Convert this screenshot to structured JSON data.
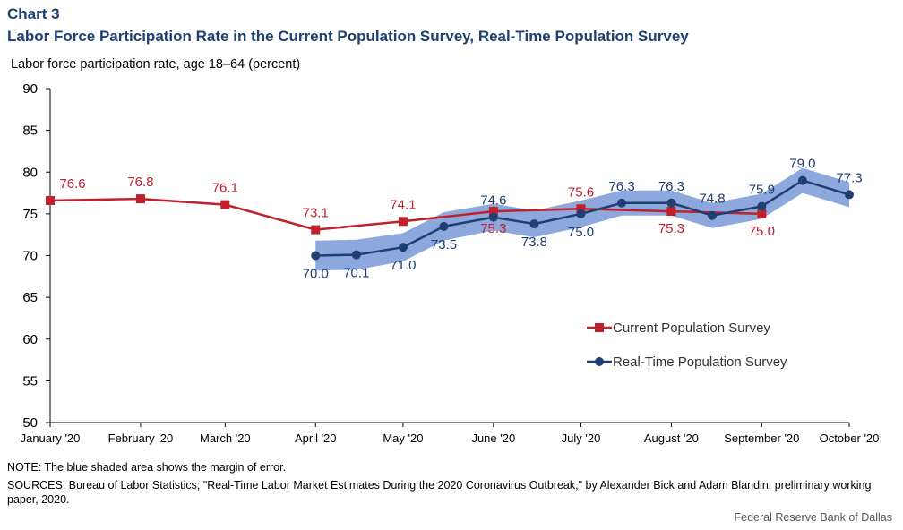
{
  "header": {
    "chart_label": "Chart 3",
    "title": "Labor Force Participation Rate in the Current Population Survey, Real-Time Population Survey"
  },
  "footer": {
    "note": "NOTE: The blue shaded area shows the margin of error.",
    "sources": "SOURCES: Bureau of Labor Statistics; \"Real-Time Labor Market Estimates During the 2020 Coronavirus Outbreak,\" by Alexander Bick and Adam Blandin, preliminary working paper, 2020.",
    "credit": "Federal Reserve Bank of Dallas"
  },
  "colors": {
    "cps": "#c0202b",
    "rps": "#1f3f73",
    "margin_band": "#7f9fd9",
    "axis": "#000000",
    "title": "#1f3f73"
  },
  "chart_data": {
    "type": "line",
    "ylabel": "Labor force participation rate, age 18–64 (percent)",
    "ylim": [
      50,
      90
    ],
    "yticks": [
      50,
      55,
      60,
      65,
      70,
      75,
      80,
      85,
      90
    ],
    "x_range": [
      "2020-01-01",
      "2020-10-01"
    ],
    "x_ticks": [
      {
        "date": "2020-01-01",
        "label": "January '20"
      },
      {
        "date": "2020-02-01",
        "label": "February '20"
      },
      {
        "date": "2020-03-01",
        "label": "March '20"
      },
      {
        "date": "2020-04-01",
        "label": "April '20"
      },
      {
        "date": "2020-05-01",
        "label": "May '20"
      },
      {
        "date": "2020-06-01",
        "label": "June '20"
      },
      {
        "date": "2020-07-01",
        "label": "July '20"
      },
      {
        "date": "2020-08-01",
        "label": "August '20"
      },
      {
        "date": "2020-09-01",
        "label": "September '20"
      },
      {
        "date": "2020-10-01",
        "label": "October '20"
      }
    ],
    "grid": false,
    "legend_position": "bottom-right",
    "series": [
      {
        "name": "Current Population Survey",
        "marker": "square",
        "points": [
          {
            "x": "2020-01-01",
            "y": 76.6,
            "label": "76.6"
          },
          {
            "x": "2020-02-01",
            "y": 76.8,
            "label": "76.8"
          },
          {
            "x": "2020-03-01",
            "y": 76.1,
            "label": "76.1"
          },
          {
            "x": "2020-04-01",
            "y": 73.1,
            "label": "73.1"
          },
          {
            "x": "2020-05-01",
            "y": 74.1,
            "label": "74.1"
          },
          {
            "x": "2020-06-01",
            "y": 75.3,
            "label": "75.3"
          },
          {
            "x": "2020-07-01",
            "y": 75.6,
            "label": "75.6"
          },
          {
            "x": "2020-08-01",
            "y": 75.3,
            "label": "75.3"
          },
          {
            "x": "2020-09-01",
            "y": 75.0,
            "label": "75.0"
          }
        ]
      },
      {
        "name": "Real-Time Population Survey",
        "marker": "circle",
        "points": [
          {
            "x": "2020-04-01",
            "y": 70.0,
            "label": "70.0",
            "low": 68.2,
            "high": 71.8
          },
          {
            "x": "2020-04-15",
            "y": 70.1,
            "label": "70.1",
            "low": 68.3,
            "high": 71.9
          },
          {
            "x": "2020-05-01",
            "y": 71.0,
            "label": "71.0",
            "low": 69.3,
            "high": 72.7
          },
          {
            "x": "2020-05-15",
            "y": 73.5,
            "label": "73.5",
            "low": 71.8,
            "high": 75.2
          },
          {
            "x": "2020-06-01",
            "y": 74.6,
            "label": "74.6",
            "low": 73.0,
            "high": 76.2
          },
          {
            "x": "2020-06-15",
            "y": 73.8,
            "label": "73.8",
            "low": 72.2,
            "high": 75.4
          },
          {
            "x": "2020-07-01",
            "y": 75.0,
            "label": "75.0",
            "low": 73.4,
            "high": 76.6
          },
          {
            "x": "2020-07-15",
            "y": 76.3,
            "label": "76.3",
            "low": 74.8,
            "high": 77.8
          },
          {
            "x": "2020-08-01",
            "y": 76.3,
            "label": "76.3",
            "low": 74.8,
            "high": 77.8
          },
          {
            "x": "2020-08-15",
            "y": 74.8,
            "label": "74.8",
            "low": 73.3,
            "high": 76.3
          },
          {
            "x": "2020-09-01",
            "y": 75.9,
            "label": "75.9",
            "low": 74.4,
            "high": 77.4
          },
          {
            "x": "2020-09-15",
            "y": 79.0,
            "label": "79.0",
            "low": 77.5,
            "high": 80.5
          },
          {
            "x": "2020-10-01",
            "y": 77.3,
            "label": "77.3",
            "low": 75.8,
            "high": 78.8
          }
        ]
      }
    ]
  }
}
